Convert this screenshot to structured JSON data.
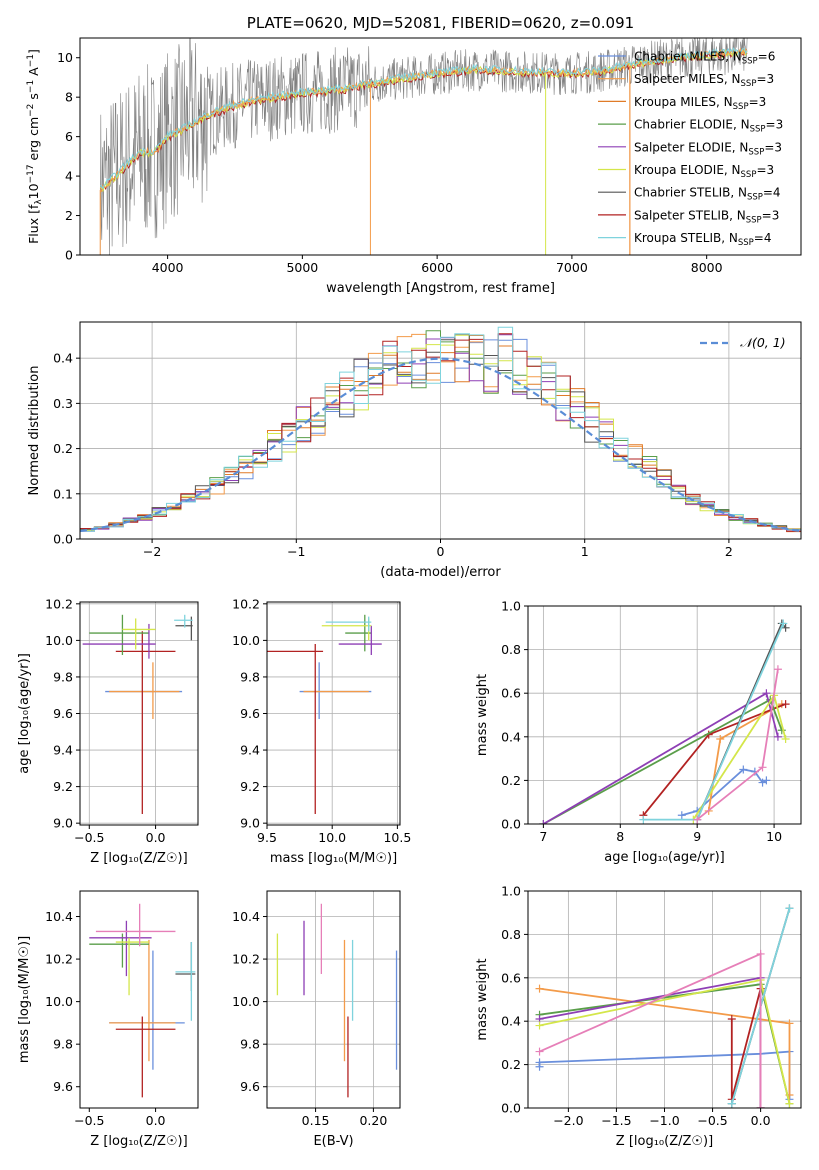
{
  "colors": {
    "spectrum_data": "#808080",
    "models": [
      "#6a8fdc",
      "#f39b4a",
      "#e07b28",
      "#5a9e4a",
      "#8e3fb5",
      "#d4e64a",
      "#555555",
      "#b22222",
      "#7fd3dd"
    ],
    "pink": "#e67fb8",
    "gaussian": "#5a8dd6",
    "grid": "#b0b0b0"
  },
  "chart_data": [
    {
      "type": "line",
      "panel": "spectrum",
      "title": "PLATE=0620, MJD=52081, FIBERID=0620, z=0.091",
      "xlabel": "wavelength [Angstrom, rest frame]",
      "ylabel_parts": [
        "Flux [f",
        "λ",
        "10",
        "−17",
        " erg cm",
        "−2",
        " s",
        "−1",
        " A",
        "−1",
        "]"
      ],
      "xlim": [
        3350,
        8700
      ],
      "ylim": [
        0,
        11
      ],
      "xticks": [
        "4000",
        "5000",
        "6000",
        "7000",
        "8000"
      ],
      "yticks": [
        "0",
        "2",
        "4",
        "6",
        "8",
        "10"
      ],
      "continuum_x": [
        3500,
        3600,
        3700,
        3800,
        3900,
        4000,
        4100,
        4300,
        4500,
        4700,
        5000,
        5300,
        5600,
        6000,
        6300,
        6600,
        6900,
        7200,
        7500,
        7800,
        8100,
        8300
      ],
      "continuum_y": [
        3.3,
        3.9,
        4.6,
        5.2,
        5.2,
        6.0,
        6.3,
        7.1,
        7.6,
        7.9,
        8.2,
        8.4,
        8.8,
        9.2,
        9.4,
        9.3,
        9.2,
        9.3,
        9.7,
        10.0,
        10.2,
        10.3
      ],
      "legend": [
        {
          "label": "Chabrier MILES, N",
          "sub": "SSP",
          "rest": "=6"
        },
        {
          "label": "Salpeter MILES, N",
          "sub": "SSP",
          "rest": "=3"
        },
        {
          "label": "Kroupa MILES, N",
          "sub": "SSP",
          "rest": "=3"
        },
        {
          "label": "Chabrier ELODIE, N",
          "sub": "SSP",
          "rest": "=3"
        },
        {
          "label": "Salpeter ELODIE, N",
          "sub": "SSP",
          "rest": "=3"
        },
        {
          "label": "Kroupa ELODIE, N",
          "sub": "SSP",
          "rest": "=3"
        },
        {
          "label": "Chabrier STELIB, N",
          "sub": "SSP",
          "rest": "=4"
        },
        {
          "label": "Salpeter STELIB, N",
          "sub": "SSP",
          "rest": "=3"
        },
        {
          "label": "Kroupa STELIB, N",
          "sub": "SSP",
          "rest": "=4"
        }
      ]
    },
    {
      "type": "bar",
      "panel": "residuals",
      "xlabel": "(data-model)/error",
      "ylabel": "Normed distribution",
      "xlim": [
        -2.5,
        2.5
      ],
      "ylim": [
        0,
        0.48
      ],
      "xticks": [
        "−2",
        "−1",
        "0",
        "1",
        "2"
      ],
      "yticks": [
        "0.0",
        "0.1",
        "0.2",
        "0.3",
        "0.4"
      ],
      "legend": "𝒩(0, 1)",
      "bin_width": 0.1,
      "bin_start": -2.5
    },
    {
      "type": "scatter",
      "panel": "age-vs-Z",
      "xlabel": "Z [log₁₀(Z/Z☉)]",
      "ylabel": "age  [log₁₀(age/yr)]",
      "xlim": [
        -0.57,
        0.32
      ],
      "ylim": [
        8.99,
        10.21
      ],
      "xticks": [
        "−0.5",
        "0.0"
      ],
      "yticks": [
        "9.0",
        "9.2",
        "9.4",
        "9.6",
        "9.8",
        "10.0",
        "10.2"
      ],
      "points": [
        {
          "x": -0.38,
          "xe": [
            -0.38,
            0.2
          ],
          "y": 9.72,
          "ye": [
            9.72,
            9.72
          ],
          "c": 0
        },
        {
          "x": -0.02,
          "xe": [
            -0.35,
            0.18
          ],
          "y": 9.72,
          "ye": [
            9.57,
            9.88
          ],
          "c": 1
        },
        {
          "x": -0.1,
          "xe": [
            -0.3,
            0.15
          ],
          "y": 9.94,
          "ye": [
            9.05,
            10.05
          ],
          "c": 7
        },
        {
          "x": -0.25,
          "xe": [
            -0.5,
            -0.05
          ],
          "y": 10.04,
          "ye": [
            9.92,
            10.14
          ],
          "c": 3
        },
        {
          "x": -0.05,
          "xe": [
            -0.55,
            0.0
          ],
          "y": 9.98,
          "ye": [
            9.9,
            10.09
          ],
          "c": 4
        },
        {
          "x": -0.15,
          "xe": [
            -0.25,
            0.0
          ],
          "y": 10.06,
          "ye": [
            9.95,
            10.12
          ],
          "c": 5
        },
        {
          "x": 0.27,
          "xe": [
            0.15,
            0.28
          ],
          "y": 10.08,
          "ye": [
            10.0,
            10.13
          ],
          "c": 6
        },
        {
          "x": 0.22,
          "xe": [
            0.14,
            0.28
          ],
          "y": 10.11,
          "ye": [
            10.07,
            10.14
          ],
          "c": 8
        }
      ]
    },
    {
      "type": "scatter",
      "panel": "age-vs-mass",
      "xlabel": "mass [log₁₀(M/M☉)]",
      "xlim": [
        9.5,
        10.52
      ],
      "ylim": [
        8.99,
        10.21
      ],
      "xticks": [
        "9.5",
        "10.0",
        "10.5"
      ],
      "yticks": [
        "9.0",
        "9.2",
        "9.4",
        "9.6",
        "9.8",
        "10.0",
        "10.2"
      ],
      "points": [
        {
          "x": 9.9,
          "xe": [
            9.75,
            10.3
          ],
          "y": 9.72,
          "ye": [
            9.57,
            9.88
          ],
          "c": 0
        },
        {
          "x": 9.9,
          "xe": [
            9.78,
            10.28
          ],
          "y": 9.72,
          "ye": [
            9.72,
            9.72
          ],
          "c": 1
        },
        {
          "x": 9.87,
          "xe": [
            9.5,
            9.93
          ],
          "y": 9.94,
          "ye": [
            9.05,
            9.98
          ],
          "c": 7
        },
        {
          "x": 10.25,
          "xe": [
            10.1,
            10.3
          ],
          "y": 10.04,
          "ye": [
            9.94,
            10.14
          ],
          "c": 3
        },
        {
          "x": 10.3,
          "xe": [
            10.05,
            10.38
          ],
          "y": 9.98,
          "ye": [
            9.92,
            10.08
          ],
          "c": 4
        },
        {
          "x": 10.28,
          "xe": [
            9.92,
            10.3
          ],
          "y": 10.08,
          "ye": [
            10.0,
            10.12
          ],
          "c": 5
        },
        {
          "x": 10.28,
          "xe": [
            9.95,
            10.3
          ],
          "y": 10.1,
          "ye": [
            10.05,
            10.13
          ],
          "c": 8
        }
      ]
    },
    {
      "type": "line",
      "panel": "mass-weight-vs-age",
      "xlabel": "age  [log₁₀(age/yr)]",
      "ylabel": "mass weight",
      "xlim": [
        6.8,
        10.35
      ],
      "ylim": [
        0,
        1
      ],
      "xticks": [
        "7",
        "8",
        "9",
        "10"
      ],
      "yticks": [
        "0.0",
        "0.2",
        "0.4",
        "0.6",
        "0.8",
        "1.0"
      ],
      "series": [
        {
          "c": 0,
          "x": [
            8.8,
            9.0,
            9.6,
            9.75,
            9.85,
            9.9
          ],
          "y": [
            0.04,
            0.06,
            0.25,
            0.24,
            0.19,
            0.2
          ]
        },
        {
          "c": 1,
          "x": [
            9.15,
            9.3,
            10.1
          ],
          "y": [
            0.06,
            0.39,
            0.55
          ]
        },
        {
          "c": 7,
          "x": [
            8.3,
            9.15,
            10.15
          ],
          "y": [
            0.04,
            0.41,
            0.55
          ]
        },
        {
          "c": 3,
          "x": [
            7.0,
            9.95,
            10.1
          ],
          "y": [
            0.0,
            0.57,
            0.43
          ]
        },
        {
          "c": 4,
          "x": [
            7.0,
            9.9,
            10.05
          ],
          "y": [
            0.0,
            0.6,
            0.4
          ]
        },
        {
          "c": 5,
          "x": [
            8.95,
            10.0,
            10.15
          ],
          "y": [
            0.02,
            0.59,
            0.39
          ]
        },
        {
          "c": 6,
          "x": [
            9.0,
            10.1,
            10.15
          ],
          "y": [
            0.02,
            0.92,
            0.9
          ]
        },
        {
          "c": 8,
          "x": [
            8.3,
            9.0,
            10.12
          ],
          "y": [
            0.02,
            0.02,
            0.92
          ]
        },
        {
          "c": "pink",
          "x": [
            9.0,
            9.85,
            10.05
          ],
          "y": [
            0.02,
            0.26,
            0.71
          ]
        }
      ]
    },
    {
      "type": "scatter",
      "panel": "mass-vs-Z",
      "xlabel": "Z [log₁₀(Z/Z☉)]",
      "ylabel": "mass [log₁₀(M/M☉)]",
      "xlim": [
        -0.57,
        0.32
      ],
      "ylim": [
        9.5,
        10.52
      ],
      "xticks": [
        "−0.5",
        "0.0"
      ],
      "yticks": [
        "9.6",
        "9.8",
        "10.0",
        "10.2",
        "10.4"
      ],
      "points": [
        {
          "x": -0.02,
          "xe": [
            -0.35,
            0.22
          ],
          "y": 9.9,
          "ye": [
            9.68,
            10.24
          ],
          "c": 0
        },
        {
          "x": -0.05,
          "xe": [
            -0.35,
            0.15
          ],
          "y": 9.9,
          "ye": [
            9.72,
            10.29
          ],
          "c": 1
        },
        {
          "x": -0.1,
          "xe": [
            -0.3,
            0.15
          ],
          "y": 9.87,
          "ye": [
            9.55,
            9.93
          ],
          "c": 7
        },
        {
          "x": -0.25,
          "xe": [
            -0.5,
            -0.05
          ],
          "y": 10.27,
          "ye": [
            10.16,
            10.32
          ],
          "c": 3
        },
        {
          "x": -0.22,
          "xe": [
            -0.5,
            -0.03
          ],
          "y": 10.3,
          "ye": [
            10.12,
            10.38
          ],
          "c": 4
        },
        {
          "x": -0.2,
          "xe": [
            -0.3,
            -0.05
          ],
          "y": 10.28,
          "ye": [
            10.03,
            10.3
          ],
          "c": 5
        },
        {
          "x": 0.27,
          "xe": [
            0.15,
            0.3
          ],
          "y": 10.13,
          "ye": [
            10.05,
            10.28
          ],
          "c": 6
        },
        {
          "x": 0.27,
          "xe": [
            0.15,
            0.3
          ],
          "y": 10.14,
          "ye": [
            9.91,
            10.28
          ],
          "c": 8
        },
        {
          "x": -0.12,
          "xe": [
            -0.45,
            0.15
          ],
          "y": 10.33,
          "ye": [
            10.26,
            10.46
          ],
          "c": "pink"
        }
      ]
    },
    {
      "type": "scatter",
      "panel": "mass-vs-EBV",
      "xlabel": "E(B-V)",
      "xlim": [
        0.108,
        0.223
      ],
      "ylim": [
        9.5,
        10.52
      ],
      "xticks": [
        "0.15",
        "0.20"
      ],
      "yticks": [
        "9.6",
        "9.8",
        "10.0",
        "10.2",
        "10.4"
      ],
      "points": [
        {
          "x": 0.117,
          "y": 10.18,
          "ye": [
            10.03,
            10.32
          ],
          "c": 5
        },
        {
          "x": 0.14,
          "y": 10.2,
          "ye": [
            10.03,
            10.38
          ],
          "c": 4
        },
        {
          "x": 0.155,
          "y": 10.3,
          "ye": [
            10.13,
            10.46
          ],
          "c": "pink"
        },
        {
          "x": 0.175,
          "y": 10.0,
          "ye": [
            9.72,
            10.29
          ],
          "c": 1
        },
        {
          "x": 0.178,
          "y": 9.87,
          "ye": [
            9.55,
            9.93
          ],
          "c": 7
        },
        {
          "x": 0.182,
          "y": 10.1,
          "ye": [
            9.91,
            10.29
          ],
          "c": 8
        },
        {
          "x": 0.22,
          "y": 9.95,
          "ye": [
            9.68,
            10.24
          ],
          "c": 0
        }
      ]
    },
    {
      "type": "line",
      "panel": "mass-weight-vs-Z",
      "xlabel": "Z [log₁₀(Z/Z☉)]",
      "ylabel": "mass weight",
      "xlim": [
        -2.42,
        0.42
      ],
      "ylim": [
        0,
        1
      ],
      "xticks": [
        "−2.0",
        "−1.5",
        "−1.0",
        "−0.5",
        "0.0"
      ],
      "yticks": [
        "0.0",
        "0.2",
        "0.4",
        "0.6",
        "0.8",
        "1.0"
      ],
      "series": [
        {
          "c": 0,
          "x": [
            -2.3,
            -2.3,
            0.0,
            0.3,
            0.3
          ],
          "y": [
            0.19,
            0.21,
            0.25,
            0.26,
            0.04
          ]
        },
        {
          "c": 1,
          "x": [
            -2.3,
            0.3,
            0.3
          ],
          "y": [
            0.55,
            0.39,
            0.06
          ]
        },
        {
          "c": 7,
          "x": [
            -0.3,
            -0.3,
            0.0,
            0.0
          ],
          "y": [
            0.41,
            0.04,
            0.55,
            0.0
          ]
        },
        {
          "c": 3,
          "x": [
            -2.3,
            0.0,
            0.3
          ],
          "y": [
            0.43,
            0.57,
            0.02
          ]
        },
        {
          "c": 4,
          "x": [
            -2.3,
            0.0,
            0.0
          ],
          "y": [
            0.41,
            0.6,
            0.0
          ]
        },
        {
          "c": 5,
          "x": [
            -2.3,
            0.0,
            0.3
          ],
          "y": [
            0.38,
            0.59,
            0.02
          ]
        },
        {
          "c": 6,
          "x": [
            -0.3,
            0.3
          ],
          "y": [
            0.02,
            0.92
          ]
        },
        {
          "c": 8,
          "x": [
            -0.3,
            0.3
          ],
          "y": [
            0.02,
            0.92
          ]
        },
        {
          "c": "pink",
          "x": [
            -2.3,
            0.0,
            0.0
          ],
          "y": [
            0.26,
            0.71,
            0.0
          ]
        }
      ]
    }
  ]
}
